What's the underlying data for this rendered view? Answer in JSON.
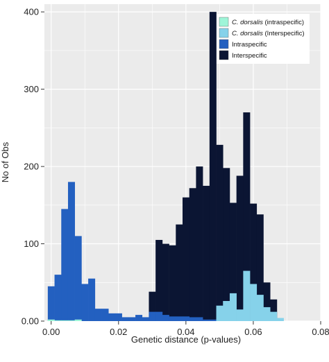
{
  "chart_data": {
    "type": "bar",
    "xlabel": "Genetic distance (p-values)",
    "ylabel": "No of Obs",
    "xlim": [
      -0.002,
      0.08
    ],
    "ylim": [
      0,
      410
    ],
    "bin_width": 0.002,
    "bin_start": -0.001,
    "xticks": [
      "0.00",
      "0.02",
      "0.04",
      "0.06",
      "0.08"
    ],
    "yticks": [
      "0.00",
      "100",
      "200",
      "300",
      "400"
    ],
    "xtick_values": [
      0.0,
      0.02,
      0.04,
      0.06,
      0.08
    ],
    "ytick_values": [
      0,
      100,
      200,
      300,
      400
    ],
    "grid": true,
    "legend_position": "top-right",
    "stacking": "cumulative",
    "series": [
      {
        "name": "Interspecific",
        "color": "#0b1533",
        "values": [
          0,
          0,
          0,
          0,
          0,
          0,
          0,
          0,
          0,
          0,
          0,
          0,
          0,
          0,
          0,
          38,
          105,
          100,
          98,
          125,
          160,
          172,
          200,
          175,
          400,
          228,
          198,
          153,
          188,
          270,
          152,
          138,
          50,
          28,
          0,
          0,
          0,
          0
        ]
      },
      {
        "name": "Intraspecific",
        "color": "#2360c0",
        "values": [
          45,
          60,
          145,
          180,
          110,
          48,
          55,
          16,
          16,
          10,
          10,
          5,
          5,
          8,
          5,
          12,
          12,
          8,
          6,
          6,
          6,
          5,
          5,
          2,
          2,
          0,
          0,
          0,
          0,
          0,
          0,
          0,
          0,
          0,
          0,
          0,
          0,
          0
        ]
      },
      {
        "name": "C. dorsalis (Interspecific)",
        "color": "#86d2ea",
        "values": [
          0,
          0,
          0,
          0,
          0,
          0,
          0,
          0,
          0,
          0,
          0,
          0,
          0,
          0,
          0,
          0,
          0,
          0,
          0,
          0,
          0,
          0,
          0,
          0,
          0,
          20,
          26,
          36,
          15,
          65,
          48,
          34,
          18,
          12,
          4,
          0,
          0,
          0
        ]
      },
      {
        "name": "C. dorsalis (intraspecific)",
        "color": "#9ef5d8",
        "values": [
          2,
          1,
          1,
          1,
          2,
          0,
          0,
          0,
          0,
          0,
          0,
          0,
          0,
          0,
          0,
          0,
          0,
          0,
          0,
          0,
          0,
          0,
          0,
          0,
          0,
          0,
          0,
          0,
          0,
          0,
          0,
          0,
          0,
          0,
          0,
          0,
          0,
          0
        ]
      }
    ],
    "legend": [
      {
        "name_italic": "C. dorsalis",
        "name_rest": " (intraspecific)",
        "color": "#9ef5d8"
      },
      {
        "name_italic": "C. dorsalis",
        "name_rest": " (Interspecific)",
        "color": "#86d2ea"
      },
      {
        "name_italic": "",
        "name_rest": "Intraspecific",
        "color": "#2360c0"
      },
      {
        "name_italic": "",
        "name_rest": "Interspecific",
        "color": "#0b1533"
      }
    ]
  }
}
